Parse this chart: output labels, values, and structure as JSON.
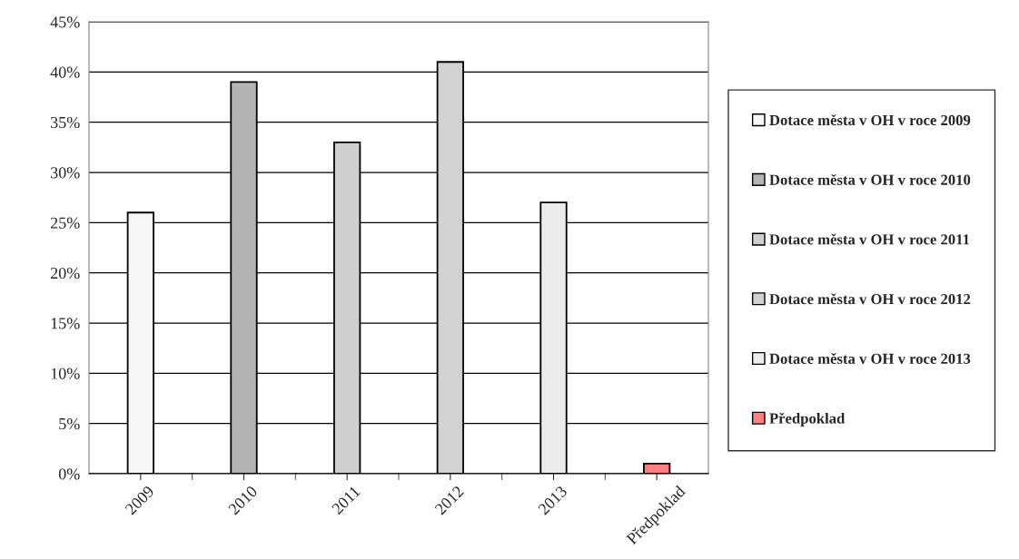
{
  "chart_data": {
    "type": "bar",
    "categories": [
      "2009",
      "2010",
      "2011",
      "2012",
      "2013",
      "Předpoklad"
    ],
    "series": [
      {
        "name": "Dotace města v OH v roce 2009",
        "color": "#f7f7f7",
        "values": [
          26,
          null,
          null,
          null,
          null,
          null
        ]
      },
      {
        "name": "Dotace města v OH v roce 2010",
        "color": "#b4b4b4",
        "values": [
          null,
          39,
          null,
          null,
          null,
          null
        ]
      },
      {
        "name": "Dotace města v OH v roce 2011",
        "color": "#cfcfcf",
        "values": [
          null,
          null,
          33,
          null,
          null,
          null
        ]
      },
      {
        "name": "Dotace města v OH v roce 2012",
        "color": "#d2d2d2",
        "values": [
          null,
          null,
          null,
          41,
          null,
          null
        ]
      },
      {
        "name": "Dotace města v OH v roce 2013",
        "color": "#ececec",
        "values": [
          null,
          null,
          null,
          null,
          27,
          null
        ]
      },
      {
        "name": "Předpoklad",
        "color": "#ff8080",
        "values": [
          null,
          null,
          null,
          null,
          null,
          1
        ]
      }
    ],
    "ylim": [
      0,
      45
    ],
    "yticks": [
      {
        "value": 0,
        "label": "0%"
      },
      {
        "value": 5,
        "label": "5%"
      },
      {
        "value": 10,
        "label": "10%"
      },
      {
        "value": 15,
        "label": "15%"
      },
      {
        "value": 20,
        "label": "20%"
      },
      {
        "value": 25,
        "label": "25%"
      },
      {
        "value": 30,
        "label": "30%"
      },
      {
        "value": 35,
        "label": "35%"
      },
      {
        "value": 40,
        "label": "40%"
      },
      {
        "value": 45,
        "label": "45%"
      }
    ],
    "grid": "y",
    "legend": "right"
  }
}
